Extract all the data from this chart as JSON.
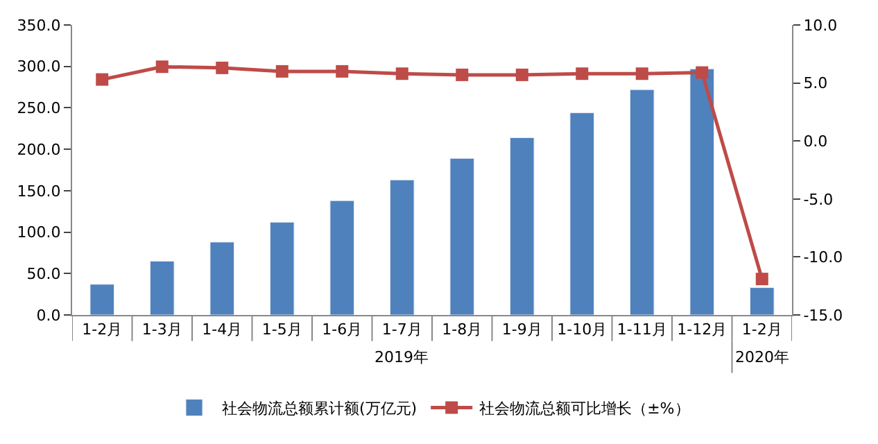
{
  "chart_data": {
    "type": "bar",
    "categories": [
      "1-2月",
      "1-3月",
      "1-4月",
      "1-5月",
      "1-6月",
      "1-7月",
      "1-8月",
      "1-9月",
      "1-10月",
      "1-11月",
      "1-12月",
      "1-2月"
    ],
    "series": [
      {
        "name": "社会物流总额累计额(万亿元)",
        "color": "#4f81bd",
        "values": [
          37,
          65,
          88,
          112,
          138,
          163,
          189,
          214,
          244,
          272,
          297,
          33
        ]
      },
      {
        "name": "社会物流总额可比增长（±%）",
        "type": "line",
        "axis": "y2",
        "color": "#be4b48",
        "marker": "square",
        "values": [
          5.3,
          6.4,
          6.3,
          6.0,
          6.0,
          5.8,
          5.7,
          5.7,
          5.8,
          5.8,
          5.9,
          -11.9
        ]
      }
    ],
    "ylim": [
      0,
      350
    ],
    "yticks": [
      {
        "value": 0,
        "label": "0.0"
      },
      {
        "value": 50,
        "label": "50.0"
      },
      {
        "value": 100,
        "label": "100.0"
      },
      {
        "value": 150,
        "label": "150.0"
      },
      {
        "value": 200,
        "label": "200.0"
      },
      {
        "value": 250,
        "label": "250.0"
      },
      {
        "value": 300,
        "label": "300.0"
      },
      {
        "value": 350,
        "label": "350.0"
      }
    ],
    "y2lim": [
      -15,
      10
    ],
    "y2ticks": [
      {
        "value": -15,
        "label": "-15.0"
      },
      {
        "value": -10,
        "label": "-10.0"
      },
      {
        "value": -5,
        "label": "-5.0"
      },
      {
        "value": 0,
        "label": "0.0"
      },
      {
        "value": 5,
        "label": "5.0"
      },
      {
        "value": 10,
        "label": "10.0"
      }
    ],
    "annotations": [
      "2019年",
      "2020年"
    ],
    "legend": "bottom"
  }
}
